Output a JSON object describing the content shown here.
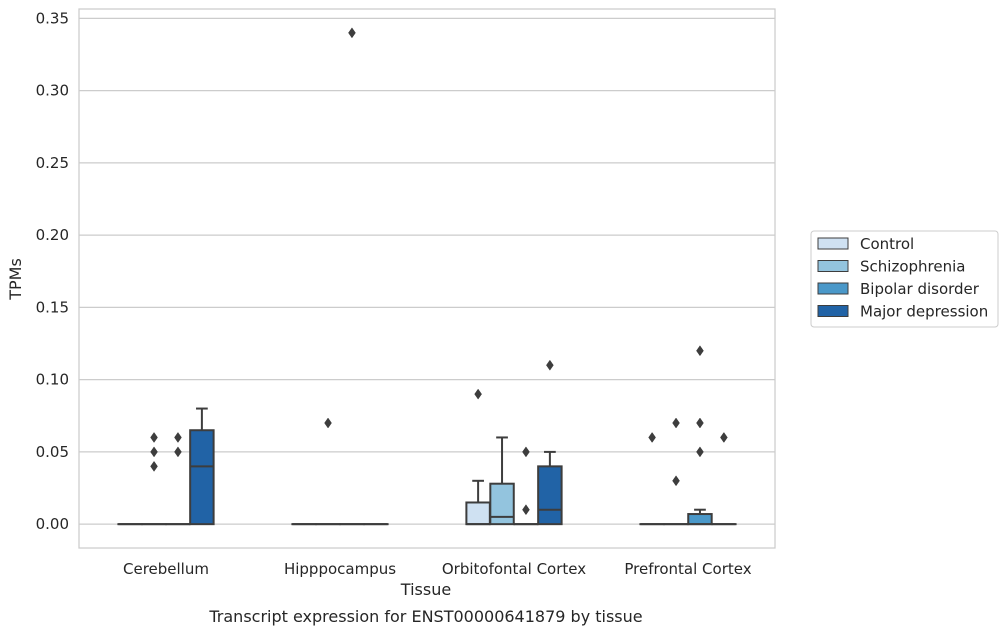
{
  "chart_data": {
    "type": "box",
    "title": "Transcript expression for ENST00000641879 by tissue",
    "xlabel": "Tissue",
    "ylabel": "TPMs",
    "categories": [
      "Cerebellum",
      "Hipppocampus",
      "Orbitofontal Cortex",
      "Prefrontal Cortex"
    ],
    "ylim": [
      -0.0165,
      0.3565
    ],
    "yticks": [
      "0.00",
      "0.05",
      "0.10",
      "0.15",
      "0.20",
      "0.25",
      "0.30",
      "0.35"
    ],
    "grid": true,
    "legend_position": "right",
    "series": [
      {
        "name": "Control",
        "color": "#cfe1f2",
        "boxes": [
          {
            "q1": 0,
            "median": 0,
            "q3": 0,
            "whislo": 0,
            "whishi": 0,
            "fliers": []
          },
          {
            "q1": 0,
            "median": 0,
            "q3": 0,
            "whislo": 0,
            "whishi": 0,
            "fliers": []
          },
          {
            "q1": 0,
            "median": 0,
            "q3": 0.015,
            "whislo": 0,
            "whishi": 0.03,
            "fliers": [
              0.09
            ]
          },
          {
            "q1": 0,
            "median": 0,
            "q3": 0,
            "whislo": 0,
            "whishi": 0,
            "fliers": [
              0.06
            ]
          }
        ]
      },
      {
        "name": "Schizophrenia",
        "color": "#93c4de",
        "boxes": [
          {
            "q1": 0,
            "median": 0,
            "q3": 0,
            "whislo": 0,
            "whishi": 0,
            "fliers": [
              0.04,
              0.05,
              0.06
            ]
          },
          {
            "q1": 0,
            "median": 0,
            "q3": 0,
            "whislo": 0,
            "whishi": 0,
            "fliers": [
              0.07
            ]
          },
          {
            "q1": 0,
            "median": 0.005,
            "q3": 0.028,
            "whislo": 0,
            "whishi": 0.06,
            "fliers": []
          },
          {
            "q1": 0,
            "median": 0,
            "q3": 0,
            "whislo": 0,
            "whishi": 0,
            "fliers": [
              0.03,
              0.07
            ]
          }
        ]
      },
      {
        "name": "Bipolar disorder",
        "color": "#4a98c9",
        "boxes": [
          {
            "q1": 0,
            "median": 0,
            "q3": 0,
            "whislo": 0,
            "whishi": 0,
            "fliers": [
              0.05,
              0.06
            ]
          },
          {
            "q1": 0,
            "median": 0,
            "q3": 0,
            "whislo": 0,
            "whishi": 0,
            "fliers": [
              0.34
            ]
          },
          {
            "q1": 0,
            "median": 0,
            "q3": 0,
            "whislo": 0,
            "whishi": 0,
            "fliers": [
              0.01,
              0.05
            ]
          },
          {
            "q1": 0,
            "median": 0,
            "q3": 0.007,
            "whislo": 0,
            "whishi": 0.01,
            "fliers": [
              0.05,
              0.07,
              0.12
            ]
          }
        ]
      },
      {
        "name": "Major depression",
        "color": "#2163a6",
        "boxes": [
          {
            "q1": 0,
            "median": 0.04,
            "q3": 0.065,
            "whislo": 0,
            "whishi": 0.08,
            "fliers": []
          },
          {
            "q1": 0,
            "median": 0,
            "q3": 0,
            "whislo": 0,
            "whishi": 0,
            "fliers": []
          },
          {
            "q1": 0,
            "median": 0.01,
            "q3": 0.04,
            "whislo": 0,
            "whishi": 0.05,
            "fliers": [
              0.11
            ]
          },
          {
            "q1": 0,
            "median": 0,
            "q3": 0,
            "whislo": 0,
            "whishi": 0,
            "fliers": [
              0.06
            ]
          }
        ]
      }
    ]
  }
}
